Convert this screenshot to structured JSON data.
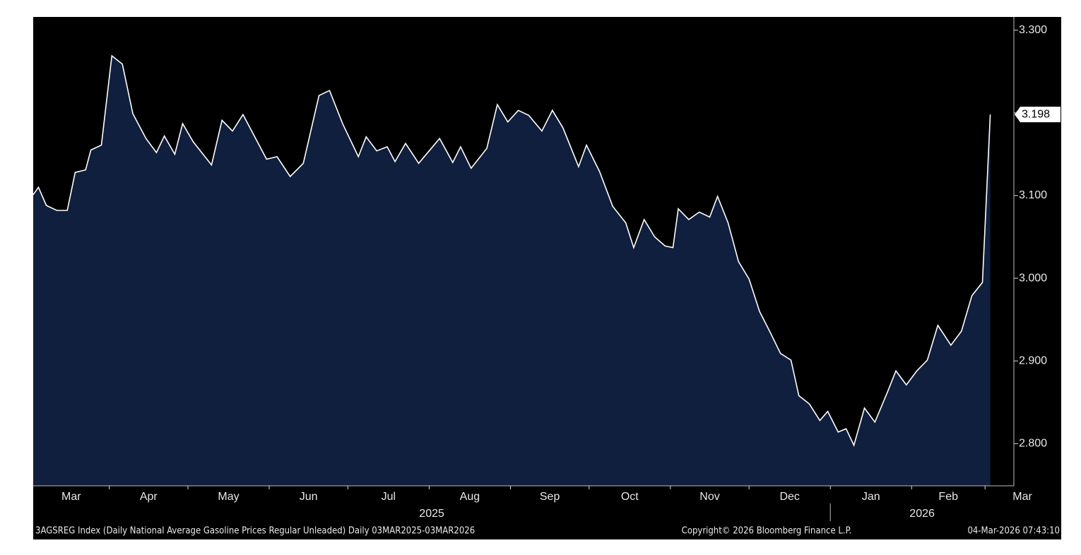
{
  "chart_data": {
    "type": "area",
    "footer_left": "3AGSREG Index (Daily National Average Gasoline Prices Regular Unleaded) Daily 03MAR2025-03MAR2026",
    "footer_center": "Copyright© 2026 Bloomberg Finance L.P.",
    "footer_right": "04-Mar-2026 07:43:10",
    "x": [
      "2025-03-03",
      "2025-03-05",
      "2025-03-08",
      "2025-03-12",
      "2025-03-16",
      "2025-03-19",
      "2025-03-23",
      "2025-03-25",
      "2025-03-29",
      "2025-04-02",
      "2025-04-06",
      "2025-04-10",
      "2025-04-15",
      "2025-04-19",
      "2025-04-22",
      "2025-04-26",
      "2025-04-29",
      "2025-05-03",
      "2025-05-10",
      "2025-05-14",
      "2025-05-18",
      "2025-05-22",
      "2025-05-26",
      "2025-05-31",
      "2025-06-04",
      "2025-06-09",
      "2025-06-14",
      "2025-06-20",
      "2025-06-24",
      "2025-06-29",
      "2025-07-05",
      "2025-07-08",
      "2025-07-12",
      "2025-07-16",
      "2025-07-19",
      "2025-07-23",
      "2025-07-28",
      "2025-08-01",
      "2025-08-05",
      "2025-08-10",
      "2025-08-13",
      "2025-08-17",
      "2025-08-23",
      "2025-08-27",
      "2025-08-31",
      "2025-09-04",
      "2025-09-08",
      "2025-09-13",
      "2025-09-17",
      "2025-09-21",
      "2025-09-27",
      "2025-09-30",
      "2025-10-05",
      "2025-10-10",
      "2025-10-15",
      "2025-10-18",
      "2025-10-22",
      "2025-10-26",
      "2025-10-30",
      "2025-11-02",
      "2025-11-04",
      "2025-11-08",
      "2025-11-12",
      "2025-11-16",
      "2025-11-19",
      "2025-11-23",
      "2025-11-27",
      "2025-12-01",
      "2025-12-05",
      "2025-12-09",
      "2025-12-13",
      "2025-12-17",
      "2025-12-20",
      "2025-12-24",
      "2025-12-28",
      "2025-12-31",
      "2026-01-04",
      "2026-01-07",
      "2026-01-10",
      "2026-01-14",
      "2026-01-18",
      "2026-01-23",
      "2026-01-26",
      "2026-01-30",
      "2026-02-03",
      "2026-02-07",
      "2026-02-11",
      "2026-02-16",
      "2026-02-20",
      "2026-02-24",
      "2026-02-28",
      "2026-03-03"
    ],
    "series": [
      {
        "color": "#ffffff",
        "fill": "#0f1f3d",
        "values": [
          3.101,
          3.11,
          3.088,
          3.082,
          3.082,
          3.128,
          3.131,
          3.155,
          3.161,
          3.269,
          3.259,
          3.199,
          3.169,
          3.152,
          3.172,
          3.15,
          3.187,
          3.165,
          3.137,
          3.191,
          3.178,
          3.198,
          3.174,
          3.144,
          3.147,
          3.123,
          3.139,
          3.221,
          3.227,
          3.187,
          3.147,
          3.171,
          3.154,
          3.159,
          3.141,
          3.163,
          3.139,
          3.154,
          3.169,
          3.14,
          3.159,
          3.133,
          3.157,
          3.21,
          3.189,
          3.203,
          3.197,
          3.178,
          3.203,
          3.182,
          3.135,
          3.161,
          3.129,
          3.087,
          3.067,
          3.037,
          3.071,
          3.05,
          3.039,
          3.037,
          3.084,
          3.071,
          3.08,
          3.074,
          3.099,
          3.067,
          3.02,
          2.999,
          2.96,
          2.935,
          2.909,
          2.901,
          2.858,
          2.848,
          2.828,
          2.839,
          2.814,
          2.818,
          2.798,
          2.843,
          2.826,
          2.864,
          2.888,
          2.871,
          2.888,
          2.901,
          2.943,
          2.919,
          2.936,
          2.979,
          2.995,
          3.198
        ]
      }
    ],
    "last_label": "3.198",
    "xlim": [
      "2025-03-03",
      "2026-03-12"
    ],
    "xticks": [
      {
        "value": "2025-03-01",
        "label": "Mar"
      },
      {
        "value": "2025-04-01",
        "label": "Apr"
      },
      {
        "value": "2025-05-01",
        "label": "May"
      },
      {
        "value": "2025-06-01",
        "label": "Jun"
      },
      {
        "value": "2025-07-01",
        "label": "Jul"
      },
      {
        "value": "2025-08-01",
        "label": "Aug"
      },
      {
        "value": "2025-09-01",
        "label": "Sep"
      },
      {
        "value": "2025-10-01",
        "label": "Oct"
      },
      {
        "value": "2025-11-01",
        "label": "Nov"
      },
      {
        "value": "2025-12-01",
        "label": "Dec"
      },
      {
        "value": "2026-01-01",
        "label": "Jan"
      },
      {
        "value": "2026-02-01",
        "label": "Feb"
      },
      {
        "value": "2026-03-01",
        "label": "Mar"
      }
    ],
    "years": [
      "2025",
      "2026"
    ],
    "ylim": [
      2.749,
      3.316
    ],
    "yticks": [
      {
        "value": 2.8,
        "label": "2.800"
      },
      {
        "value": 2.9,
        "label": "2.900"
      },
      {
        "value": 3.0,
        "label": "3.000"
      },
      {
        "value": 3.1,
        "label": "3.100"
      },
      {
        "value": 3.2,
        "label": "3.200"
      },
      {
        "value": 3.3,
        "label": "3.300"
      }
    ]
  }
}
